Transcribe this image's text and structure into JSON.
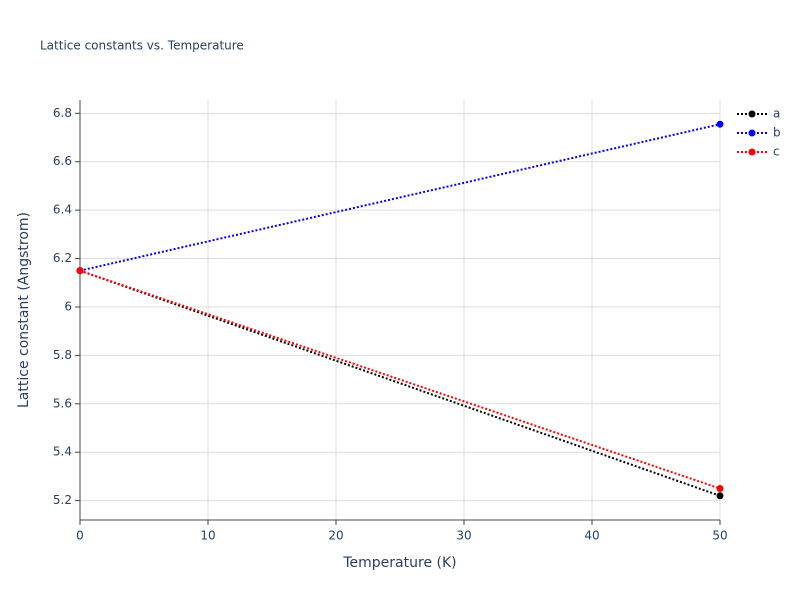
{
  "chart_data": {
    "type": "line",
    "title": "Lattice constants vs. Temperature",
    "x_label": "Temperature (K)",
    "y_label": "Lattice constant (Angstrom)",
    "x": [
      0,
      50
    ],
    "series": [
      {
        "name": "a",
        "color": "#000000",
        "values": [
          6.15,
          5.22
        ]
      },
      {
        "name": "b",
        "color": "#0000ff",
        "values": [
          6.15,
          6.755
        ]
      },
      {
        "name": "c",
        "color": "#ff0000",
        "values": [
          6.15,
          5.25
        ]
      }
    ],
    "xlim": [
      0,
      50
    ],
    "xticks": [
      0,
      10,
      20,
      30,
      40,
      50
    ],
    "ylim": [
      5.12,
      6.855
    ],
    "yticks": [
      5.2,
      5.4,
      5.6,
      5.8,
      6,
      6.2,
      6.4,
      6.6,
      6.8
    ],
    "grid": true,
    "legend": "right"
  }
}
